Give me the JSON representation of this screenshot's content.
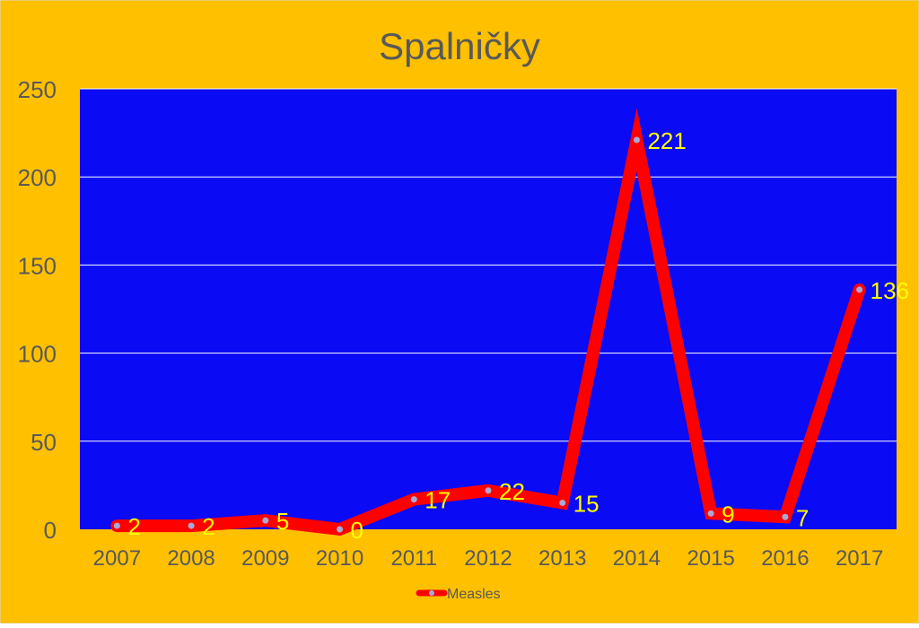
{
  "chart_data": {
    "type": "line",
    "title": "Spalničky",
    "xlabel": "",
    "ylabel": "",
    "categories": [
      "2007",
      "2008",
      "2009",
      "2010",
      "2011",
      "2012",
      "2013",
      "2014",
      "2015",
      "2016",
      "2017"
    ],
    "series": [
      {
        "name": "Measles",
        "values": [
          2,
          2,
          5,
          0,
          17,
          22,
          15,
          221,
          9,
          7,
          136
        ],
        "data_labels": [
          "2",
          "2",
          "5",
          "0",
          "17",
          "22",
          "15",
          "221",
          "9",
          "7",
          "136"
        ]
      }
    ],
    "ylim": [
      0,
      250
    ],
    "y_ticks": [
      "0",
      "50",
      "100",
      "150",
      "200",
      "250"
    ],
    "grid": true,
    "legend_position": "bottom",
    "colors": {
      "background": "#FFC000",
      "plot_area": "#0A0AF5",
      "line": "#FF0000",
      "marker": "#A8A8D8",
      "data_label": "#FFFF00",
      "axis_text": "#595959",
      "gridline": "#FFFFFF"
    }
  }
}
